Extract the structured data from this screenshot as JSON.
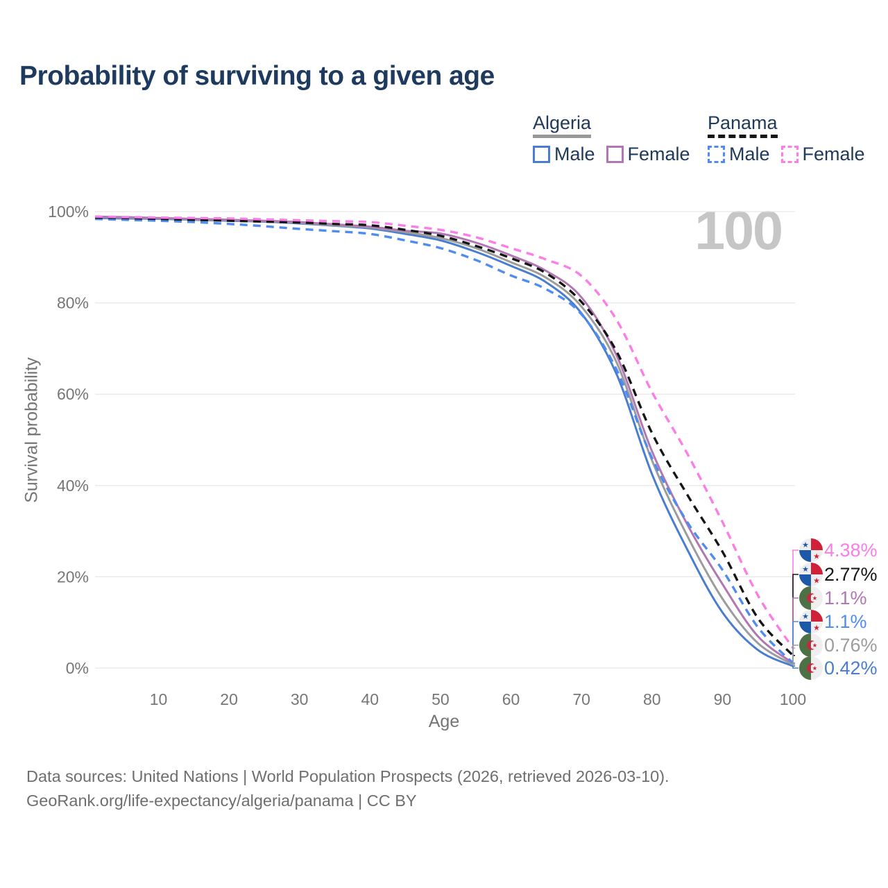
{
  "title": "Probability of surviving to a given age",
  "watermark_age": "100",
  "legend": {
    "groups": [
      {
        "label": "Algeria",
        "underline_style": "solid",
        "underline_color": "#999999",
        "items": [
          {
            "label": "Male",
            "color": "#4a7dd0",
            "dash": false
          },
          {
            "label": "Female",
            "color": "#b077b2",
            "dash": false
          }
        ]
      },
      {
        "label": "Panama",
        "underline_style": "dashed",
        "underline_color": "#161616",
        "items": [
          {
            "label": "Male",
            "color": "#4f8cf0",
            "dash": true
          },
          {
            "label": "Female",
            "color": "#fb7de7",
            "dash": true
          }
        ]
      }
    ]
  },
  "chart_data": {
    "type": "line",
    "title": "Probability of surviving to a given age",
    "xlabel": "Age",
    "ylabel": "Survival probability",
    "xlim": [
      1,
      100
    ],
    "ylim": [
      0,
      100
    ],
    "grid": "horizontal",
    "legend_position": "top-right",
    "x_ticks": [
      10,
      20,
      30,
      40,
      50,
      60,
      70,
      80,
      90,
      100
    ],
    "y_ticks": [
      0,
      20,
      40,
      60,
      80,
      100
    ],
    "y_tick_labels": [
      "0%",
      "20%",
      "40%",
      "60%",
      "80%",
      "100%"
    ],
    "ages": [
      1,
      5,
      10,
      15,
      20,
      25,
      30,
      35,
      40,
      45,
      50,
      55,
      60,
      65,
      70,
      75,
      80,
      85,
      90,
      95,
      100
    ],
    "series": [
      {
        "id": "algeria-male",
        "name": "Algeria Male",
        "country": "algeria",
        "color": "#4a7dd0",
        "dash": false,
        "end_label": "0.42%",
        "values": [
          98.6,
          98.5,
          98.4,
          98.2,
          98.0,
          97.8,
          97.4,
          96.9,
          96.3,
          95.1,
          93.7,
          91.2,
          88.1,
          84.5,
          77.7,
          64.3,
          42.5,
          26.0,
          12.2,
          4.0,
          0.42
        ]
      },
      {
        "id": "algeria",
        "name": "Algeria",
        "country": "algeria",
        "color": "#9c9c9c",
        "dash": false,
        "end_label": "0.76%",
        "values": [
          98.8,
          98.7,
          98.5,
          98.3,
          98.1,
          97.9,
          97.5,
          97.0,
          96.5,
          95.5,
          94.2,
          92.0,
          88.9,
          85.5,
          79.2,
          66.9,
          45.5,
          29.0,
          15.2,
          5.5,
          0.76
        ]
      },
      {
        "id": "algeria-female",
        "name": "Algeria Female",
        "country": "algeria",
        "color": "#b077b2",
        "dash": false,
        "end_label": "1.1%",
        "values": [
          98.9,
          98.8,
          98.6,
          98.4,
          98.2,
          98.0,
          97.7,
          97.2,
          96.7,
          95.8,
          95.2,
          93.2,
          90.4,
          87.0,
          81.2,
          68.4,
          47.5,
          31.5,
          18.4,
          7.0,
          1.1
        ]
      },
      {
        "id": "panama-male",
        "name": "Panama Male",
        "country": "panama",
        "color": "#4f8cf0",
        "dash": true,
        "end_label": "1.1%",
        "values": [
          98.4,
          98.2,
          98.0,
          97.7,
          97.3,
          96.8,
          96.2,
          95.7,
          95.1,
          93.7,
          92.0,
          89.4,
          86.0,
          83.0,
          77.5,
          65.3,
          46.0,
          32.0,
          21.5,
          9.0,
          1.1
        ]
      },
      {
        "id": "panama",
        "name": "Panama",
        "country": "panama",
        "color": "#161616",
        "dash": true,
        "end_label": "2.77%",
        "values": [
          98.7,
          98.6,
          98.4,
          98.2,
          98.0,
          97.8,
          97.6,
          97.3,
          97.0,
          96.0,
          94.7,
          92.5,
          89.8,
          86.5,
          80.2,
          69.3,
          51.5,
          38.0,
          25.5,
          11.0,
          2.77
        ]
      },
      {
        "id": "panama-female",
        "name": "Panama Female",
        "country": "panama",
        "color": "#fb7de7",
        "dash": true,
        "end_label": "4.38%",
        "values": [
          98.9,
          98.8,
          98.7,
          98.6,
          98.5,
          98.3,
          98.1,
          97.9,
          97.7,
          96.9,
          96.0,
          94.4,
          92.0,
          89.5,
          85.9,
          76.2,
          60.5,
          47.0,
          32.0,
          16.0,
          4.38
        ]
      }
    ]
  },
  "footer": {
    "line1": "Data sources: United Nations | World Population Prospects (2026, retrieved 2026-03-10).",
    "line2": "GeoRank.org/life-expectancy/algeria/panama | CC BY"
  }
}
